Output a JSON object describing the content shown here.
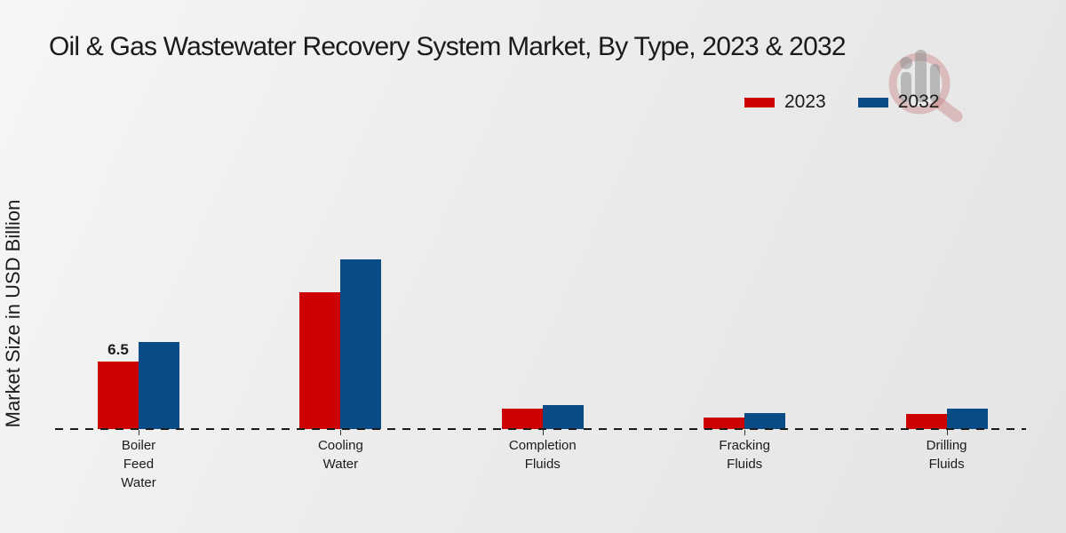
{
  "page": {
    "title": "Oil & Gas Wastewater Recovery System Market, By Type, 2023 & 2032"
  },
  "legend": {
    "position": "top-right",
    "items": [
      {
        "label": "2023",
        "color": "#cc0202"
      },
      {
        "label": "2032",
        "color": "#084b86"
      }
    ]
  },
  "watermark_icon": "magnifier-bar-chart-logo",
  "colors": {
    "series_2023": "#cc0202",
    "series_2032": "#084b86",
    "footer_bar": "#c40404",
    "text": "#1b1b1b"
  },
  "chart_data": {
    "type": "bar",
    "title": "Oil & Gas Wastewater Recovery System Market, By Type, 2023 & 2032",
    "xlabel": "",
    "ylabel": "Market Size in USD Billion",
    "categories": [
      "Boiler Feed Water",
      "Cooling Water",
      "Completion Fluids",
      "Fracking Fluids",
      "Drilling Fluids"
    ],
    "series": [
      {
        "name": "2023",
        "color": "#cc0202",
        "values": [
          6.5,
          13.2,
          2.0,
          1.1,
          1.45
        ]
      },
      {
        "name": "2032",
        "color": "#084b86",
        "values": [
          8.4,
          16.3,
          2.3,
          1.55,
          2.0
        ]
      }
    ],
    "data_labels": [
      {
        "series": "2023",
        "category": "Boiler Feed Water",
        "text": "6.5"
      }
    ],
    "ylim": [
      0,
      20
    ],
    "grid": false,
    "y_ticks_visible": false,
    "baseline_style": "dashed",
    "legend_position": "top-right"
  }
}
